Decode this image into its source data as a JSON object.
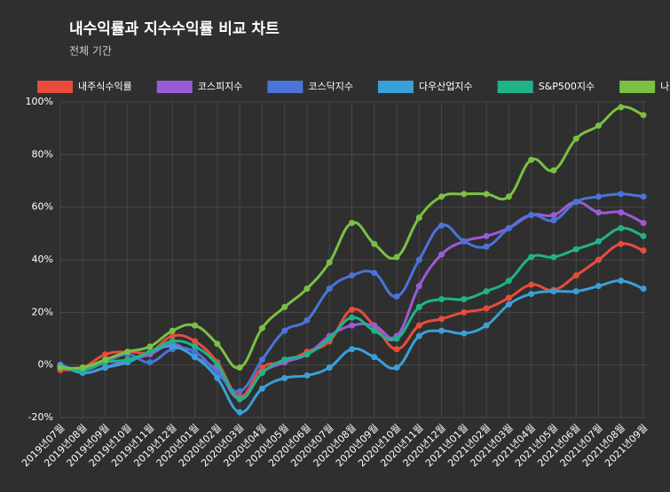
{
  "chart_data": {
    "type": "line",
    "title": "내수익률과 지수수익률 비교 차트",
    "subtitle": "전체 기간",
    "categories": [
      "2019년07월",
      "2019년08월",
      "2019년09월",
      "2019년10월",
      "2019년11월",
      "2019년12월",
      "2020년01월",
      "2020년02월",
      "2020년03월",
      "2020년04월",
      "2020년05월",
      "2020년06월",
      "2020년07월",
      "2020년08월",
      "2020년09월",
      "2020년10월",
      "2020년11월",
      "2020년12월",
      "2021년01월",
      "2021년02월",
      "2021년03월",
      "2021년04월",
      "2021년05월",
      "2021년06월",
      "2021년07월",
      "2021년08월",
      "2021년09월"
    ],
    "series": [
      {
        "name": "내주식수익률",
        "color": "#e74c3c",
        "values": [
          -2,
          -1,
          4,
          5,
          5,
          11,
          9,
          1,
          -12,
          -1,
          1,
          5,
          9,
          21,
          15,
          6,
          15,
          17.5,
          20,
          21.5,
          25.5,
          30.5,
          28.5,
          34,
          40,
          46,
          43.5
        ]
      },
      {
        "name": "코스피지수",
        "color": "#9b5bd6",
        "values": [
          0,
          -3,
          -1,
          2,
          4,
          8,
          3,
          -2,
          -13,
          -3,
          1,
          4,
          11,
          15,
          15,
          11,
          30,
          42,
          47,
          49,
          52,
          57,
          57,
          62,
          58,
          58,
          54
        ]
      },
      {
        "name": "코스닥지수",
        "color": "#4a74d8",
        "values": [
          0,
          -2,
          1,
          4,
          1,
          6,
          5,
          -3,
          -10,
          2,
          13,
          17,
          29,
          34,
          35,
          26,
          40,
          53,
          47,
          45,
          52,
          57,
          55,
          62,
          64,
          65,
          64
        ]
      },
      {
        "name": "다우산업지수",
        "color": "#3aa0d8",
        "values": [
          0,
          -3,
          -1,
          1,
          5,
          7,
          3,
          -5,
          -18,
          -9,
          -5,
          -4,
          -1,
          6,
          3,
          -1,
          11,
          13,
          12,
          15,
          23,
          27,
          28,
          28,
          30,
          32,
          29
        ]
      },
      {
        "name": "S&P500지수",
        "color": "#20b38a",
        "values": [
          -1,
          -2,
          1,
          2,
          5,
          9,
          7,
          0,
          -13,
          -3,
          2,
          4,
          10,
          18,
          13,
          10,
          22,
          25,
          25,
          28,
          32,
          41,
          41,
          44,
          47,
          52,
          49
        ]
      },
      {
        "name": "나스닥지수",
        "color": "#7ac143",
        "values": [
          -1,
          -1,
          2,
          5,
          7,
          13,
          15,
          8,
          -1,
          14,
          22,
          29,
          39,
          54,
          46,
          41,
          56,
          64,
          65,
          65,
          64,
          78,
          74,
          86,
          91,
          98,
          95
        ]
      }
    ],
    "ylim": [
      -20,
      100
    ],
    "yticks": [
      {
        "value": -20,
        "label": "-20%"
      },
      {
        "value": 0,
        "label": "0%"
      },
      {
        "value": 20,
        "label": "20%"
      },
      {
        "value": 40,
        "label": "40%"
      },
      {
        "value": 60,
        "label": "60%"
      },
      {
        "value": 80,
        "label": "80%"
      },
      {
        "value": 100,
        "label": "100%"
      }
    ],
    "grid": true,
    "legend": "top"
  }
}
